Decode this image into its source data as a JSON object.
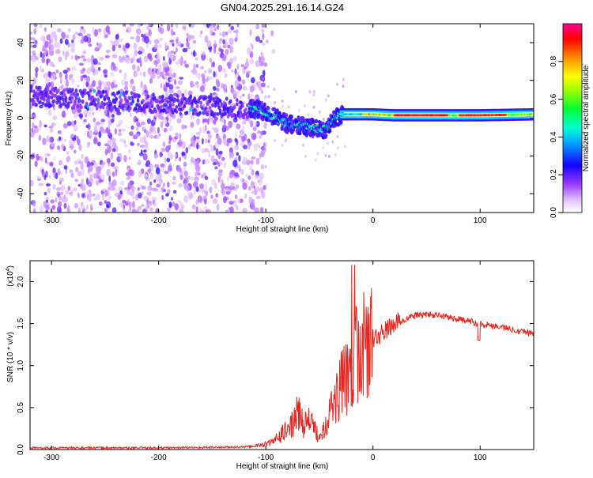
{
  "chart_data": [
    {
      "type": "heatmap",
      "title": "GN04.2025.291.16.14.G24",
      "xlabel": "Height of straight line (km)",
      "ylabel": "Frequency (Hz)",
      "xlim": [
        -320,
        150
      ],
      "ylim": [
        -50,
        50
      ],
      "xticks": [
        -300,
        -200,
        -100,
        0,
        100
      ],
      "yticks": [
        -40,
        -20,
        0,
        20,
        40
      ],
      "colorbar": {
        "label": "Normalized spectral amplitude",
        "range": [
          0,
          1
        ],
        "ticks": [
          0.0,
          0.2,
          0.4,
          0.6,
          0.8
        ],
        "colormap": [
          "#ffffff",
          "#d8a8ff",
          "#7a00ff",
          "#0000ff",
          "#00ffff",
          "#00ff00",
          "#ffff00",
          "#ff8000",
          "#ff0000",
          "#ff00a0"
        ]
      },
      "ridge": {
        "description_points_x": [
          -320,
          -300,
          -250,
          -200,
          -170,
          -130,
          -110,
          -100,
          -80,
          -60,
          -45,
          -35,
          -30,
          -20,
          0,
          20,
          60,
          100,
          150
        ],
        "frequency_y": [
          12,
          11,
          9,
          8,
          7,
          5,
          5,
          3,
          -3,
          -5,
          -6,
          0,
          2,
          2,
          2,
          1.5,
          1.5,
          1.5,
          2
        ]
      }
    },
    {
      "type": "line",
      "xlabel": "Height of straight line (km)",
      "ylabel": "SNR (10 * v/v)",
      "y_multiplier": "(x10",
      "y_multiplier_exp": "4",
      "y_multiplier_close": ")",
      "xlim": [
        -320,
        150
      ],
      "ylim": [
        0,
        2.25
      ],
      "xticks": [
        -300,
        -200,
        -100,
        0,
        100
      ],
      "yticks": [
        0.0,
        0.5,
        1.0,
        1.5,
        2.0
      ],
      "color": "#e8261e",
      "series": [
        {
          "name": "SNR",
          "x": [
            -320,
            -200,
            -120,
            -105,
            -95,
            -85,
            -75,
            -70,
            -65,
            -60,
            -55,
            -50,
            -45,
            -40,
            -35,
            -30,
            -25,
            -20,
            -18,
            -15,
            -10,
            -5,
            0,
            5,
            10,
            15,
            20,
            25,
            30,
            40,
            50,
            60,
            70,
            80,
            90,
            100,
            110,
            120,
            130,
            140,
            150
          ],
          "values": [
            0.02,
            0.02,
            0.03,
            0.05,
            0.08,
            0.18,
            0.3,
            0.45,
            0.3,
            0.35,
            0.25,
            0.15,
            0.3,
            0.45,
            0.6,
            0.75,
            0.85,
            1.05,
            1.1,
            1.15,
            1.2,
            1.25,
            1.3,
            1.35,
            1.4,
            1.45,
            1.5,
            1.52,
            1.55,
            1.6,
            1.61,
            1.6,
            1.58,
            1.55,
            1.53,
            1.5,
            1.48,
            1.46,
            1.43,
            1.41,
            1.38
          ]
        }
      ]
    }
  ]
}
